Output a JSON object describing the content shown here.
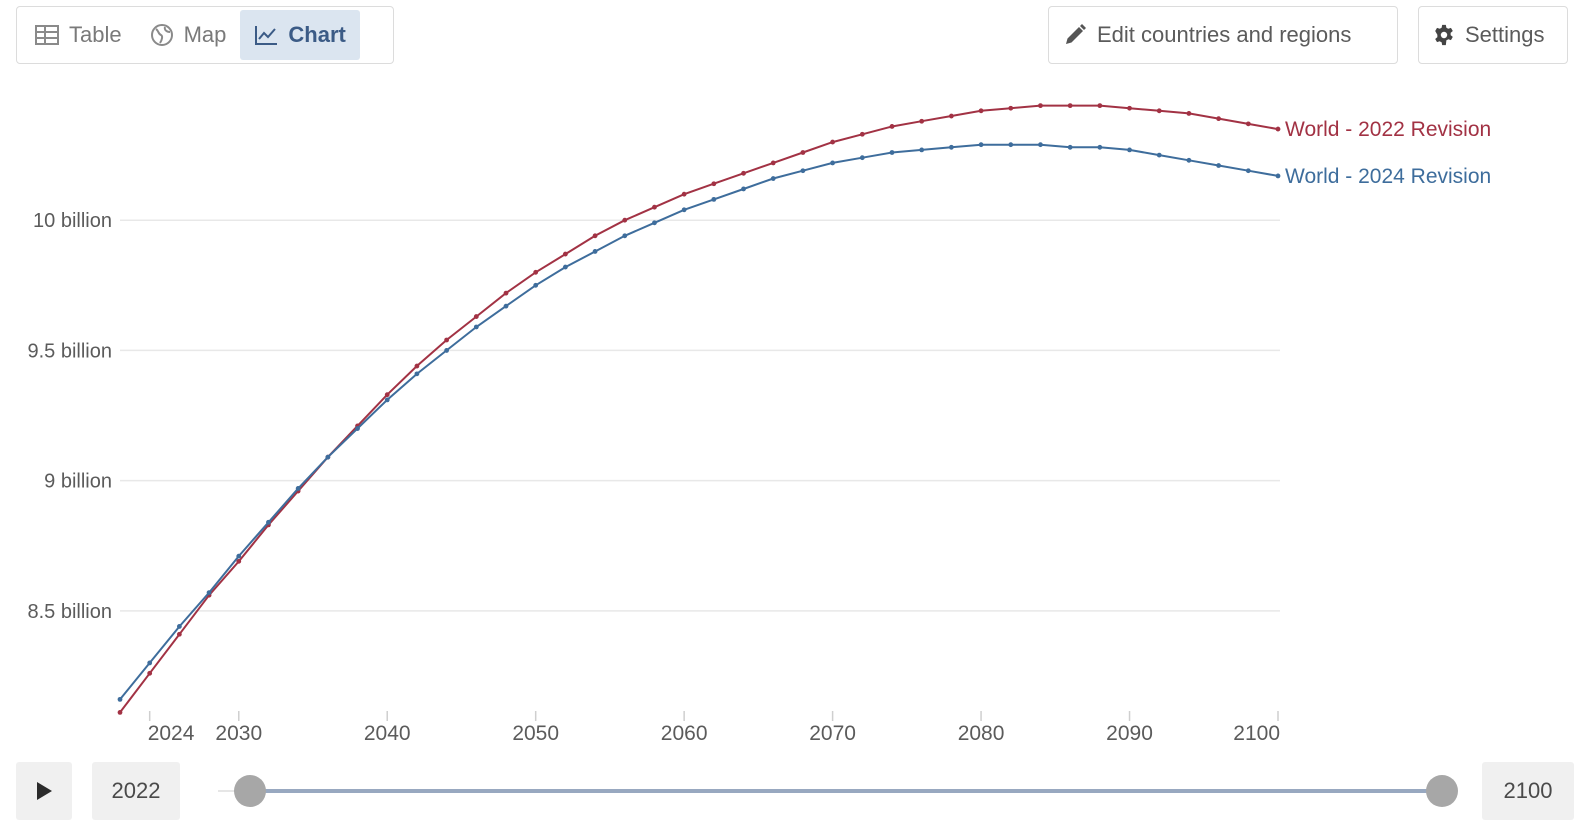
{
  "tabs": [
    {
      "label": "Table",
      "icon": "table-icon"
    },
    {
      "label": "Map",
      "icon": "globe-icon"
    },
    {
      "label": "Chart",
      "icon": "line-chart-icon",
      "active": true
    }
  ],
  "buttons": {
    "edit": {
      "label": "Edit countries and regions",
      "icon": "pencil-icon"
    },
    "settings": {
      "label": "Settings",
      "icon": "gear-icon"
    }
  },
  "timeline": {
    "start_year": "2022",
    "end_year": "2100",
    "play_icon": "play-icon"
  },
  "colors": {
    "series_2022": "#a23244",
    "series_2024": "#3e6d9c",
    "tab_active_bg": "#dbe5f0",
    "slider_track": "#98a8c0",
    "grid": "#e8e8e8"
  },
  "chart_data": {
    "type": "line",
    "xlim": [
      2022,
      2100
    ],
    "ylim": [
      8.1,
      10.5
    ],
    "y_unit": "billion",
    "y_ticks": [
      {
        "value": 8.5,
        "label": "8.5 billion"
      },
      {
        "value": 9.0,
        "label": "9 billion"
      },
      {
        "value": 9.5,
        "label": "9.5 billion"
      },
      {
        "value": 10.0,
        "label": "10 billion"
      }
    ],
    "x_ticks": [
      {
        "value": 2024,
        "label": "2024"
      },
      {
        "value": 2030,
        "label": "2030"
      },
      {
        "value": 2040,
        "label": "2040"
      },
      {
        "value": 2050,
        "label": "2050"
      },
      {
        "value": 2060,
        "label": "2060"
      },
      {
        "value": 2070,
        "label": "2070"
      },
      {
        "value": 2080,
        "label": "2080"
      },
      {
        "value": 2090,
        "label": "2090"
      },
      {
        "value": 2100,
        "label": "2100"
      }
    ],
    "grid": true,
    "series": [
      {
        "name": "World - 2022 Revision",
        "color": "#a23244",
        "x": [
          2022,
          2024,
          2026,
          2028,
          2030,
          2032,
          2034,
          2036,
          2038,
          2040,
          2042,
          2044,
          2046,
          2048,
          2050,
          2052,
          2054,
          2056,
          2058,
          2060,
          2062,
          2064,
          2066,
          2068,
          2070,
          2072,
          2074,
          2076,
          2078,
          2080,
          2082,
          2084,
          2086,
          2088,
          2090,
          2092,
          2094,
          2096,
          2098,
          2100
        ],
        "values": [
          8.11,
          8.26,
          8.41,
          8.56,
          8.69,
          8.83,
          8.96,
          9.09,
          9.21,
          9.33,
          9.44,
          9.54,
          9.63,
          9.72,
          9.8,
          9.87,
          9.94,
          10.0,
          10.05,
          10.1,
          10.14,
          10.18,
          10.22,
          10.26,
          10.3,
          10.33,
          10.36,
          10.38,
          10.4,
          10.42,
          10.43,
          10.44,
          10.44,
          10.44,
          10.43,
          10.42,
          10.41,
          10.39,
          10.37,
          10.35
        ]
      },
      {
        "name": "World - 2024 Revision",
        "color": "#3e6d9c",
        "x": [
          2022,
          2024,
          2026,
          2028,
          2030,
          2032,
          2034,
          2036,
          2038,
          2040,
          2042,
          2044,
          2046,
          2048,
          2050,
          2052,
          2054,
          2056,
          2058,
          2060,
          2062,
          2064,
          2066,
          2068,
          2070,
          2072,
          2074,
          2076,
          2078,
          2080,
          2082,
          2084,
          2086,
          2088,
          2090,
          2092,
          2094,
          2096,
          2098,
          2100
        ],
        "values": [
          8.16,
          8.3,
          8.44,
          8.57,
          8.71,
          8.84,
          8.97,
          9.09,
          9.2,
          9.31,
          9.41,
          9.5,
          9.59,
          9.67,
          9.75,
          9.82,
          9.88,
          9.94,
          9.99,
          10.04,
          10.08,
          10.12,
          10.16,
          10.19,
          10.22,
          10.24,
          10.26,
          10.27,
          10.28,
          10.29,
          10.29,
          10.29,
          10.28,
          10.28,
          10.27,
          10.25,
          10.23,
          10.21,
          10.19,
          10.17
        ]
      }
    ]
  }
}
